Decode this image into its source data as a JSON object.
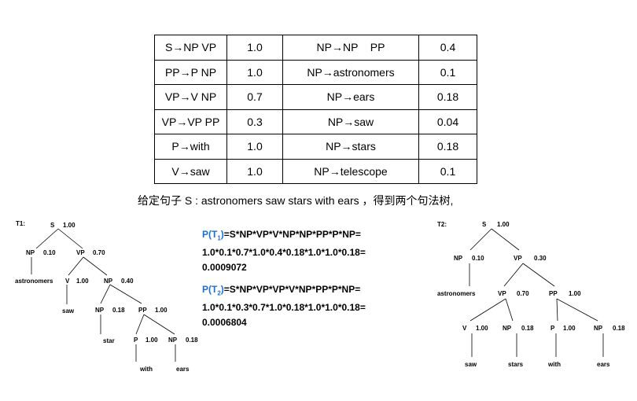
{
  "rules": [
    {
      "left_rule": "S→NP VP",
      "left_prob": "1.0",
      "right_rule": "NP→NP    PP",
      "right_prob": "0.4"
    },
    {
      "left_rule": "PP→P NP",
      "left_prob": "1.0",
      "right_rule": "NP→astronomers",
      "right_prob": "0.1"
    },
    {
      "left_rule": "VP→V NP",
      "left_prob": "0.7",
      "right_rule": "NP→ears",
      "right_prob": "0.18"
    },
    {
      "left_rule": "VP→VP PP",
      "left_prob": "0.3",
      "right_rule": "NP→saw",
      "right_prob": "0.04"
    },
    {
      "left_rule": "P→with",
      "left_prob": "1.0",
      "right_rule": "NP→stars",
      "right_prob": "0.18"
    },
    {
      "left_rule": "V→saw",
      "left_prob": "1.0",
      "right_rule": "NP→telescope",
      "right_prob": "0.1"
    }
  ],
  "caption": "给定句子 S : astronomers saw stars with ears ，得到两个句法树,",
  "tree1": {
    "label": "T1:",
    "nodes": [
      {
        "text": "S",
        "prob": "1.00"
      },
      {
        "text": "NP",
        "prob": "0.10"
      },
      {
        "text": "VP",
        "prob": "0.70"
      },
      {
        "text": "astronomers"
      },
      {
        "text": "V",
        "prob": "1.00"
      },
      {
        "text": "NP",
        "prob": "0.40"
      },
      {
        "text": "saw"
      },
      {
        "text": "NP",
        "prob": "0.18"
      },
      {
        "text": "PP",
        "prob": "1.00"
      },
      {
        "text": "star"
      },
      {
        "text": "P",
        "prob": "1.00"
      },
      {
        "text": "NP",
        "prob": "0.18"
      },
      {
        "text": "with"
      },
      {
        "text": "ears"
      }
    ]
  },
  "tree2": {
    "label": "T2:",
    "nodes": [
      {
        "text": "S",
        "prob": "1.00"
      },
      {
        "text": "NP",
        "prob": "0.10"
      },
      {
        "text": "VP",
        "prob": "0.30"
      },
      {
        "text": "astronomers"
      },
      {
        "text": "VP",
        "prob": "0.70"
      },
      {
        "text": "PP",
        "prob": "1.00"
      },
      {
        "text": "V",
        "prob": "1.00"
      },
      {
        "text": "NP",
        "prob": "0.18"
      },
      {
        "text": "P",
        "prob": "1.00"
      },
      {
        "text": "NP",
        "prob": "0.18"
      },
      {
        "text": "saw"
      },
      {
        "text": "stars"
      },
      {
        "text": "with"
      },
      {
        "text": "ears"
      }
    ]
  },
  "formula1": {
    "head": "P(T",
    "sub": "1",
    "head_end": ")",
    "line1_rest": "=S*NP*VP*V*NP*NP*PP*P*NP=",
    "line2": "1.0*0.1*0.7*1.0*0.4*0.18*1.0*1.0*0.18=",
    "line3": "0.0009072"
  },
  "formula2": {
    "head": "P(T",
    "sub": "2",
    "head_end": ")",
    "line1_rest": "=S*NP*VP*VP*V*NP*PP*P*NP=",
    "line2": "1.0*0.1*0.3*0.7*1.0*0.18*1.0*1.0*0.18=",
    "line3": "0.0006804"
  },
  "colors": {
    "formula_head": "#1f6fd0",
    "text": "#000000"
  }
}
